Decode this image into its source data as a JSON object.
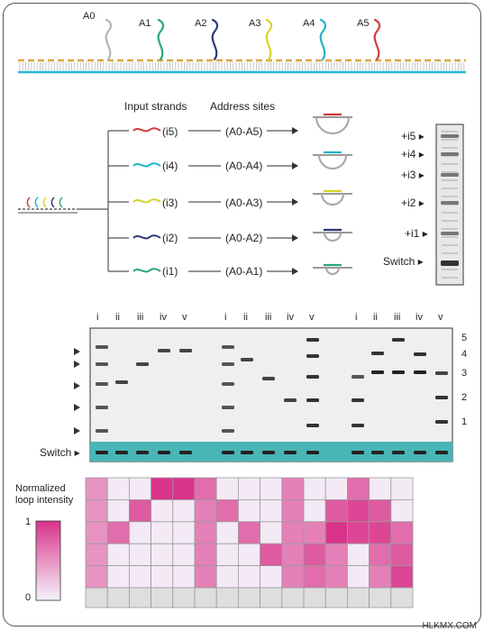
{
  "address_labels": [
    "A0",
    "A1",
    "A2",
    "A3",
    "A4",
    "A5"
  ],
  "colors": {
    "A0": "#b5b5b5",
    "A1": "#2aa678",
    "A2": "#2c3878",
    "A3": "#d4d42a",
    "A4": "#1fb3c8",
    "A5": "#d23a3a",
    "track": "#d9a640",
    "base": "#29b8d6",
    "teal": "#49b5b5",
    "magenta": "#d9338a"
  },
  "diagram": {
    "header_input": "Input strands",
    "header_address": "Address sites",
    "rows": [
      {
        "input": "(i5)",
        "address": "(A0-A5)",
        "color": "A5"
      },
      {
        "input": "(i4)",
        "address": "(A0-A4)",
        "color": "A4"
      },
      {
        "input": "(i3)",
        "address": "(A0-A3)",
        "color": "A3"
      },
      {
        "input": "(i2)",
        "address": "(A0-A2)",
        "color": "A2"
      },
      {
        "input": "(i1)",
        "address": "(A0-A1)",
        "color": "A1"
      }
    ]
  },
  "small_gel": {
    "labels": [
      "+i5",
      "+i4",
      "+i3",
      "+i2",
      "+i1",
      "Switch"
    ]
  },
  "large_gel": {
    "lane_labels": [
      "i",
      "ii",
      "iii",
      "iv",
      "v"
    ],
    "right_labels": [
      "5",
      "4",
      "3",
      "2",
      "1"
    ],
    "switch_label": "Switch"
  },
  "heatmap": {
    "title_line1": "Normalized",
    "title_line2": "loop intensity",
    "scale_max": "1",
    "scale_min": "0",
    "rows": 5,
    "values": [
      [
        0.5,
        0.05,
        0.05,
        1,
        1,
        0.7,
        0.05,
        0.05,
        0.05,
        0.6,
        0.05,
        0.05,
        0.7,
        0.05,
        0.05
      ],
      [
        0.5,
        0.05,
        0.8,
        0.05,
        0.05,
        0.6,
        0.7,
        0.05,
        0.05,
        0.6,
        0.05,
        0.8,
        0.9,
        0.8,
        0.05
      ],
      [
        0.5,
        0.7,
        0.05,
        0.05,
        0.05,
        0.6,
        0.05,
        0.7,
        0.05,
        0.6,
        0.6,
        1,
        0.9,
        0.9,
        0.7
      ],
      [
        0.5,
        0.05,
        0.05,
        0.05,
        0.05,
        0.6,
        0.05,
        0.05,
        0.8,
        0.6,
        0.8,
        0.6,
        0.05,
        0.7,
        0.8
      ],
      [
        0.5,
        0.05,
        0.05,
        0.05,
        0.05,
        0.6,
        0.05,
        0.05,
        0.05,
        0.6,
        0.7,
        0.6,
        0.05,
        0.6,
        0.9
      ]
    ]
  },
  "watermark": "HLKMX.COM"
}
